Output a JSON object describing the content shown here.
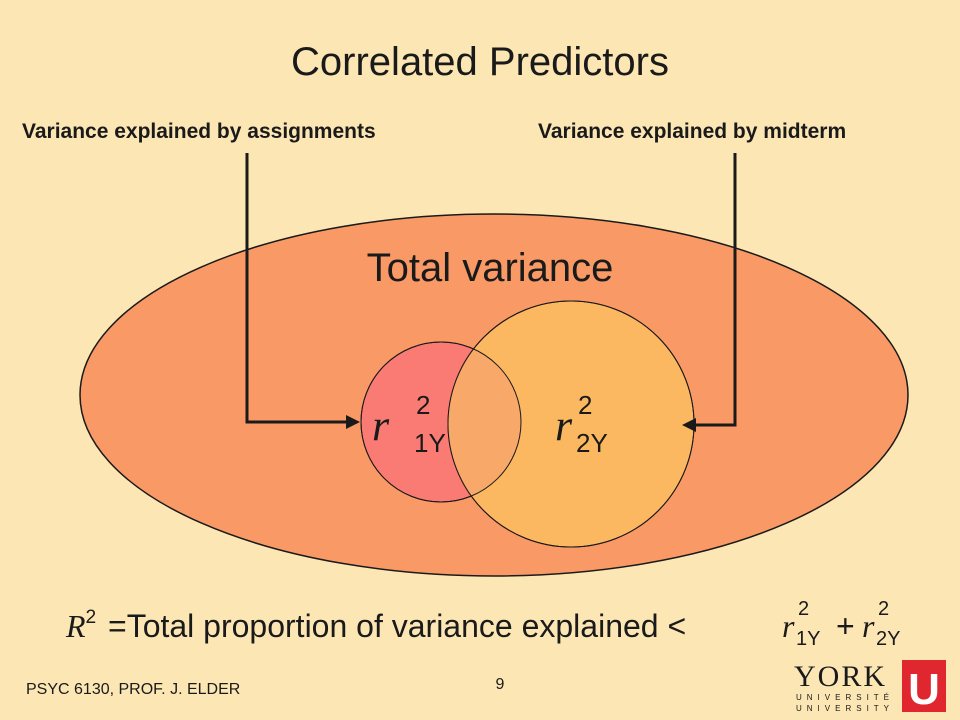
{
  "slide": {
    "title": "Correlated Predictors",
    "left_label": "Variance explained by assignments",
    "right_label": "Variance explained by midterm",
    "outer_label": "Total variance",
    "circle1": {
      "var": "r",
      "sup": "2",
      "sub": "1Y"
    },
    "circle2": {
      "var": "r",
      "sup": "2",
      "sub": "2Y"
    },
    "formula": {
      "lhs_var": "R",
      "lhs_sup": "2",
      "text": "=Total proportion of variance explained <",
      "term1": {
        "var": "r",
        "sup": "2",
        "sub": "1Y"
      },
      "plus": "+",
      "term2": {
        "var": "r",
        "sup": "2",
        "sub": "2Y"
      }
    },
    "footer": "PSYC 6130, PROF. J. ELDER",
    "page_number": "9",
    "logo": {
      "word": "YORK",
      "line1": "UNIVERSITÉ",
      "line2": "UNIVERSITY",
      "mark": "U"
    }
  },
  "colors": {
    "background": "#fbe6b4",
    "outer_ellipse": "#f99966",
    "circle1": "#f97b73",
    "circle2": "#fbb860",
    "overlap": "#f8a868",
    "logo_red": "#e0262e"
  }
}
